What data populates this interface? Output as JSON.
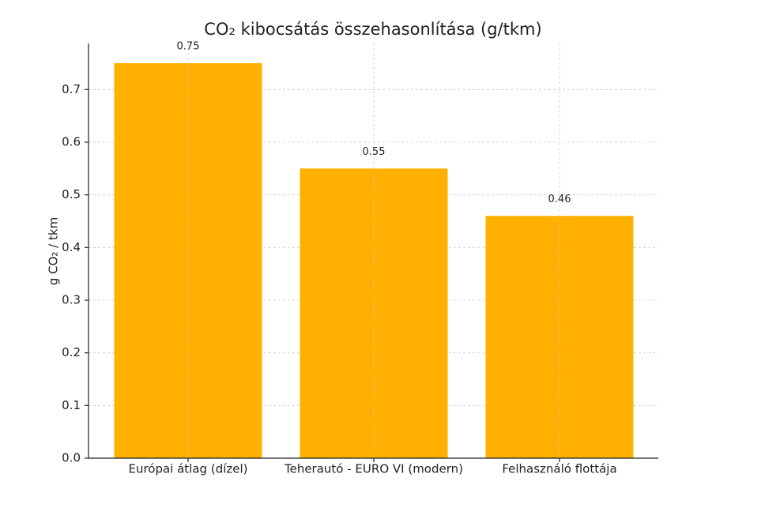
{
  "chart_data": {
    "type": "bar",
    "title": "CO₂ kibocsátás összehasonlítása (g/tkm)",
    "y_label": "g CO₂ / tkm",
    "categories": [
      "Európai átlag (dízel)",
      "Teherautó - EURO VI (modern)",
      "Felhasználó flottája"
    ],
    "values": [
      0.75,
      0.55,
      0.46
    ],
    "color": "#ffb000",
    "ylim": [
      0,
      0.7875
    ],
    "yticks": [
      {
        "value": 0,
        "label": "0.0"
      },
      0.1,
      0.2,
      0.3,
      0.4,
      0.5,
      0.6,
      0.7
    ],
    "grid": true
  }
}
